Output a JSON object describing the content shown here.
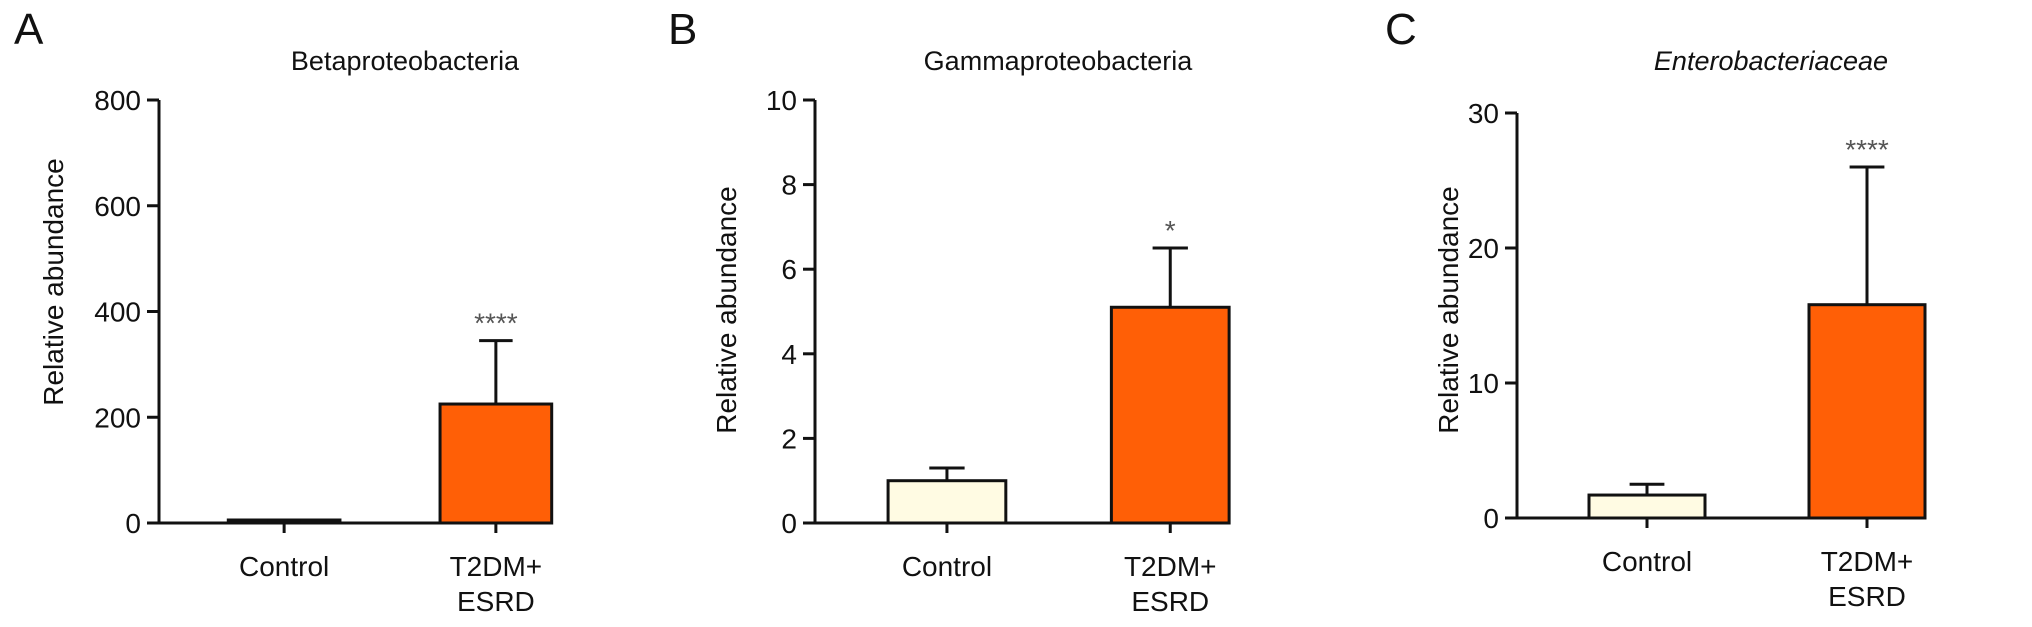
{
  "colors": {
    "control_fill": "#fffbe3",
    "esrd_fill": "#ff5f06",
    "stroke": "#111111"
  },
  "chart_data": [
    {
      "type": "bar",
      "panel": "A",
      "title": "Betaproteobacteria",
      "title_italic": false,
      "xlabel": "",
      "ylabel": "Relative abundance",
      "ylim": [
        0,
        800
      ],
      "yticks": [
        0,
        200,
        400,
        600,
        800
      ],
      "categories": [
        [
          "Control"
        ],
        [
          "T2DM+",
          "ESRD"
        ]
      ],
      "values": [
        2,
        225
      ],
      "errors": [
        1,
        120
      ],
      "significance": [
        "",
        "****"
      ]
    },
    {
      "type": "bar",
      "panel": "B",
      "title": "Gammaproteobacteria",
      "title_italic": false,
      "xlabel": "",
      "ylabel": "Relative abundance",
      "ylim": [
        0,
        10
      ],
      "yticks": [
        0,
        2,
        4,
        6,
        8,
        10
      ],
      "categories": [
        [
          "Control"
        ],
        [
          "T2DM+",
          "ESRD"
        ]
      ],
      "values": [
        1.0,
        5.1
      ],
      "errors": [
        0.3,
        1.4
      ],
      "significance": [
        "",
        "*"
      ]
    },
    {
      "type": "bar",
      "panel": "C",
      "title": "Enterobacteriaceae",
      "title_italic": true,
      "xlabel": "",
      "ylabel": "Relative abundance",
      "ylim": [
        0,
        30
      ],
      "yticks": [
        0,
        10,
        20,
        30
      ],
      "categories": [
        [
          "Control"
        ],
        [
          "T2DM+",
          "ESRD"
        ]
      ],
      "values": [
        1.7,
        15.8
      ],
      "errors": [
        0.8,
        10.2
      ],
      "significance": [
        "",
        "****"
      ]
    }
  ]
}
